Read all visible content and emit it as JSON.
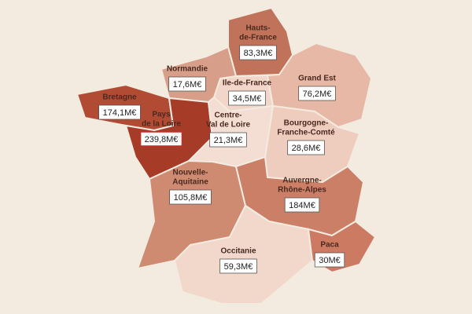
{
  "regions": [
    {
      "name": [
        "Hauts-",
        "de-France"
      ],
      "value": "83,3M€",
      "color": "#c0735a"
    },
    {
      "name": [
        "Normandie"
      ],
      "value": "17,6M€",
      "color": "#d79e89"
    },
    {
      "name": [
        "Ile-de-France"
      ],
      "value": "34,5M€",
      "color": "#f1d6c9"
    },
    {
      "name": [
        "Grand Est"
      ],
      "value": "76,2M€",
      "color": "#e6b8a5"
    },
    {
      "name": [
        "Bretagne"
      ],
      "value": "174,1M€",
      "color": "#b24b33"
    },
    {
      "name": [
        "Pays",
        "de la Loire"
      ],
      "value": "239,8M€",
      "color": "#a63c27"
    },
    {
      "name": [
        "Centre-",
        "Val de Loire"
      ],
      "value": "21,3M€",
      "color": "#f4ddd2"
    },
    {
      "name": [
        "Bourgogne-",
        "Franche-Comté"
      ],
      "value": "28,6M€",
      "color": "#eecdbf"
    },
    {
      "name": [
        "Nouvelle-",
        "Aquitaine"
      ],
      "value": "105,8M€",
      "color": "#cf8a72"
    },
    {
      "name": [
        "Auvergne-",
        "Rhône-Alpes"
      ],
      "value": "184M€",
      "color": "#cb7f66"
    },
    {
      "name": [
        "Occitanie"
      ],
      "value": "59,3M€",
      "color": "#f1d8cb"
    },
    {
      "name": [
        "Paca"
      ],
      "value": "30M€",
      "color": "#cc7a62"
    }
  ]
}
